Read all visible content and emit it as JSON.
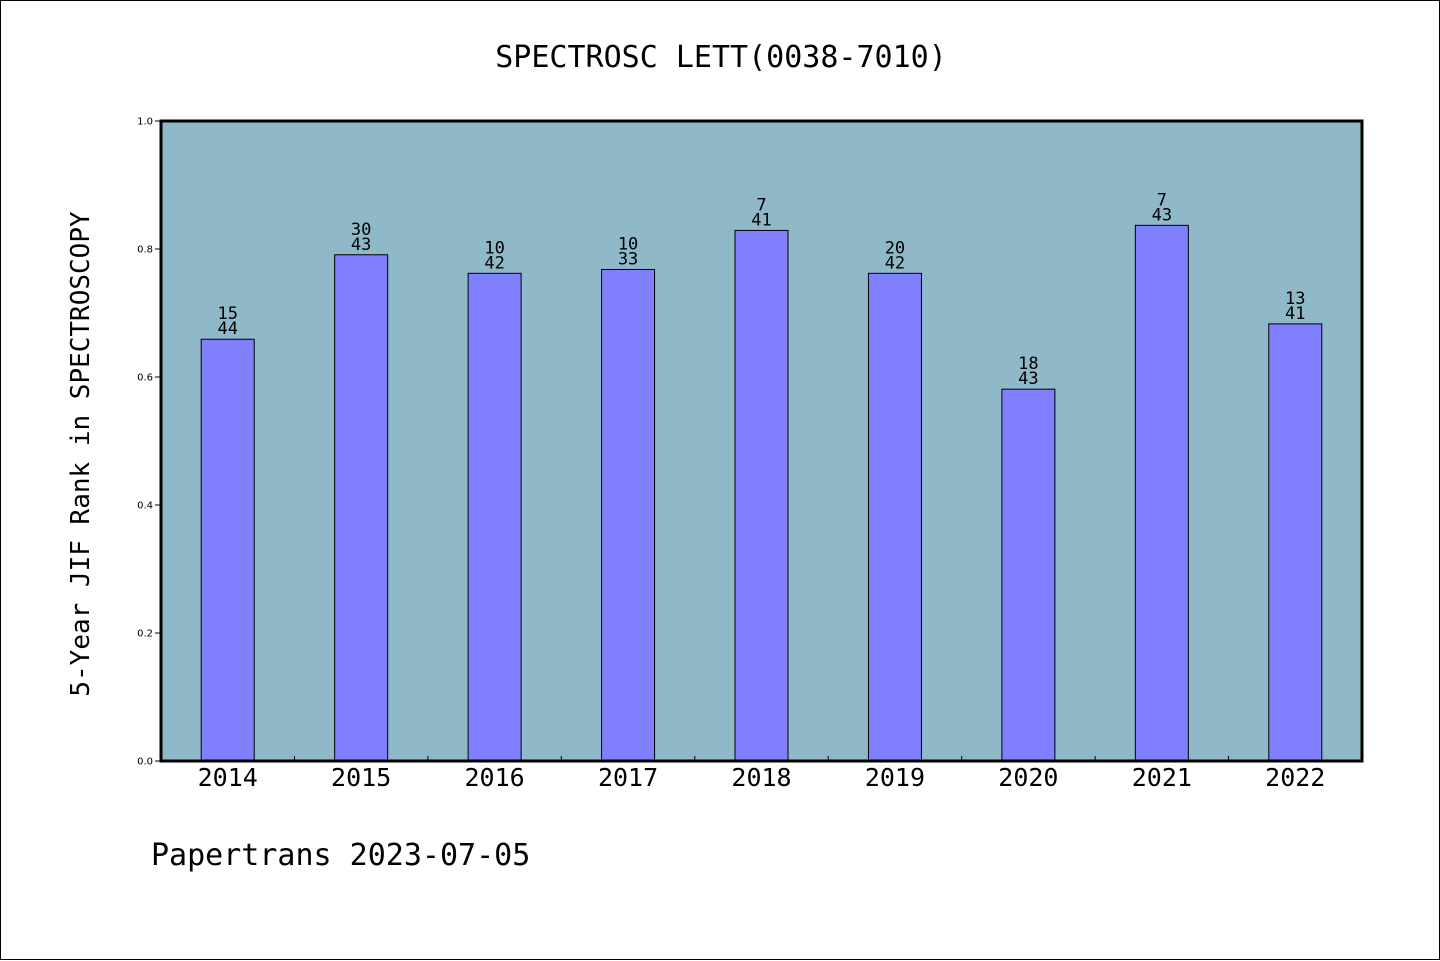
{
  "chart_data": {
    "type": "bar",
    "title": "SPECTROSC LETT(0038-7010)",
    "ylabel": "5-Year JIF Rank in SPECTROSCOPY",
    "xlabel": "",
    "ylim": [
      0,
      1.0
    ],
    "yticks": [
      "0.0",
      "0.2",
      "0.4",
      "0.6",
      "0.8",
      "1.0"
    ],
    "categories": [
      "2014",
      "2015",
      "2016",
      "2017",
      "2018",
      "2019",
      "2020",
      "2021",
      "2022"
    ],
    "values": [
      0.659,
      0.791,
      0.762,
      0.768,
      0.829,
      0.762,
      0.581,
      0.837,
      0.683
    ],
    "ranks": [
      "15",
      "30",
      "10",
      "10",
      "7",
      "20",
      "18",
      "7",
      "13"
    ],
    "totals": [
      "44",
      "43",
      "42",
      "33",
      "41",
      "42",
      "43",
      "43",
      "41"
    ],
    "grid": false,
    "colors": {
      "plot_background": "#8fb8c8",
      "bar": "#8080ff",
      "bar_edge": "#000000"
    }
  },
  "footer": {
    "text": "Papertrans 2023-07-05"
  }
}
